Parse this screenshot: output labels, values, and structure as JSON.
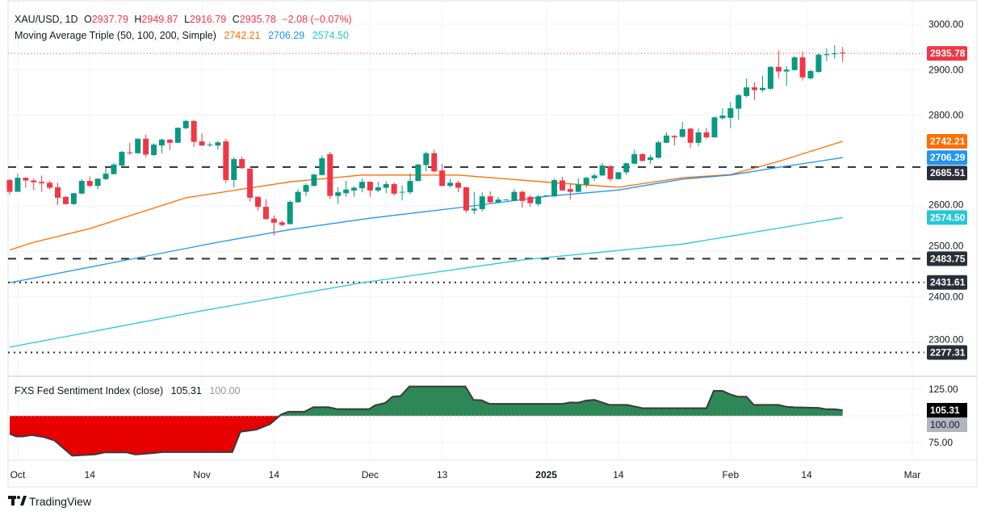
{
  "header": {
    "symbol": "XAU/USD, 1D",
    "open_label": "O",
    "open": "2937.79",
    "high_label": "H",
    "high": "2949.87",
    "low_label": "L",
    "low": "2916.79",
    "close_label": "C",
    "close": "2935.78",
    "change": "−2.08 (−0.07%)",
    "ma_label": "Moving Average Triple (50, 100, 200, Simple)",
    "ma50": "2742.21",
    "ma100": "2706.29",
    "ma200": "2574.50"
  },
  "indicator": {
    "label": "FXS Fed Sentiment Index (close)",
    "value": "105.31",
    "baseline": "100.00"
  },
  "colors": {
    "up": "#089981",
    "down": "#f23645",
    "ma50": "#ff6d00",
    "ma100": "#2196f3",
    "ma200": "#26c6da",
    "level": "#2a2e39",
    "sentiment_up": "#2e8757",
    "sentiment_down": "#e60000"
  },
  "branding": "TradingView",
  "chart_data": [
    {
      "type": "candlestick",
      "symbol": "XAU/USD",
      "interval": "1D",
      "ylim": [
        2230,
        3050
      ],
      "grid": true,
      "y_ticks": [
        "3000.00",
        "2900.00",
        "2800.00",
        "2600.00",
        "2500.00",
        "2400.00",
        "2300.00"
      ],
      "x_ticks": [
        {
          "label": "Oct",
          "bar": 1
        },
        {
          "label": "14",
          "bar": 10
        },
        {
          "label": "Nov",
          "bar": 24
        },
        {
          "label": "14",
          "bar": 33
        },
        {
          "label": "Dec",
          "bar": 45
        },
        {
          "label": "13",
          "bar": 54
        },
        {
          "label": "2025",
          "bar": 67
        },
        {
          "label": "14",
          "bar": 76
        },
        {
          "label": "Feb",
          "bar": 90
        },
        {
          "label": "14",
          "bar": 99.5
        },
        {
          "label": "Mar",
          "bar": 112.7
        }
      ],
      "ohlc": [
        [
          2657,
          2660,
          2625,
          2631
        ],
        [
          2631,
          2671,
          2631,
          2662
        ],
        [
          2662,
          2663,
          2640,
          2656
        ],
        [
          2656,
          2660,
          2635,
          2652
        ],
        [
          2653,
          2667,
          2631,
          2650
        ],
        [
          2651,
          2655,
          2636,
          2640
        ],
        [
          2641,
          2651,
          2602,
          2618
        ],
        [
          2620,
          2621,
          2603,
          2604
        ],
        [
          2604,
          2629,
          2602,
          2628
        ],
        [
          2627,
          2659,
          2626,
          2655
        ],
        [
          2655,
          2665,
          2642,
          2644
        ],
        [
          2644,
          2660,
          2637,
          2660
        ],
        [
          2659,
          2684,
          2657,
          2671
        ],
        [
          2670,
          2695,
          2669,
          2691
        ],
        [
          2689,
          2721,
          2688,
          2719
        ],
        [
          2718,
          2739,
          2712,
          2716
        ],
        [
          2716,
          2748,
          2715,
          2748
        ],
        [
          2748,
          2757,
          2707,
          2713
        ],
        [
          2712,
          2738,
          2710,
          2735
        ],
        [
          2733,
          2748,
          2716,
          2746
        ],
        [
          2746,
          2747,
          2723,
          2739
        ],
        [
          2739,
          2773,
          2738,
          2772
        ],
        [
          2771,
          2789,
          2769,
          2787
        ],
        [
          2787,
          2789,
          2730,
          2741
        ],
        [
          2742,
          2760,
          2732,
          2733
        ],
        [
          2734,
          2741,
          2730,
          2735
        ],
        [
          2733,
          2743,
          2724,
          2740
        ],
        [
          2742,
          2748,
          2650,
          2657
        ],
        [
          2657,
          2707,
          2640,
          2703
        ],
        [
          2703,
          2708,
          2682,
          2683
        ],
        [
          2682,
          2683,
          2610,
          2618
        ],
        [
          2620,
          2621,
          2589,
          2598
        ],
        [
          2598,
          2615,
          2570,
          2571
        ],
        [
          2572,
          2579,
          2535,
          2563
        ],
        [
          2564,
          2568,
          2555,
          2558
        ],
        [
          2560,
          2612,
          2559,
          2609
        ],
        [
          2608,
          2637,
          2607,
          2631
        ],
        [
          2631,
          2650,
          2622,
          2646
        ],
        [
          2644,
          2671,
          2643,
          2669
        ],
        [
          2668,
          2711,
          2667,
          2705
        ],
        [
          2714,
          2719,
          2615,
          2622
        ],
        [
          2622,
          2641,
          2604,
          2630
        ],
        [
          2628,
          2655,
          2620,
          2636
        ],
        [
          2634,
          2643,
          2620,
          2640
        ],
        [
          2639,
          2660,
          2630,
          2653
        ],
        [
          2653,
          2654,
          2620,
          2634
        ],
        [
          2634,
          2653,
          2630,
          2641
        ],
        [
          2640,
          2654,
          2628,
          2648
        ],
        [
          2648,
          2652,
          2622,
          2627
        ],
        [
          2630,
          2645,
          2612,
          2631
        ],
        [
          2630,
          2672,
          2626,
          2655
        ],
        [
          2655,
          2693,
          2654,
          2691
        ],
        [
          2690,
          2720,
          2676,
          2716
        ],
        [
          2716,
          2724,
          2674,
          2676
        ],
        [
          2678,
          2692,
          2643,
          2644
        ],
        [
          2644,
          2660,
          2640,
          2651
        ],
        [
          2651,
          2655,
          2630,
          2640
        ],
        [
          2641,
          2642,
          2585,
          2590
        ],
        [
          2590,
          2631,
          2582,
          2594
        ],
        [
          2593,
          2630,
          2588,
          2621
        ],
        [
          2621,
          2632,
          2606,
          2608
        ],
        [
          2608,
          2620,
          2606,
          2614
        ],
        [
          2613,
          2615,
          2612,
          2614
        ],
        [
          2611,
          2637,
          2610,
          2631
        ],
        [
          2631,
          2634,
          2596,
          2611
        ],
        [
          2620,
          2624,
          2598,
          2606
        ],
        [
          2604,
          2625,
          2600,
          2621
        ],
        [
          2621,
          2624,
          2620,
          2623
        ],
        [
          2621,
          2660,
          2620,
          2657
        ],
        [
          2656,
          2664,
          2633,
          2634
        ],
        [
          2637,
          2649,
          2614,
          2631
        ],
        [
          2631,
          2661,
          2630,
          2647
        ],
        [
          2647,
          2664,
          2640,
          2662
        ],
        [
          2661,
          2671,
          2655,
          2667
        ],
        [
          2667,
          2694,
          2665,
          2689
        ],
        [
          2687,
          2690,
          2654,
          2659
        ],
        [
          2659,
          2675,
          2658,
          2674
        ],
        [
          2674,
          2695,
          2668,
          2694
        ],
        [
          2693,
          2724,
          2691,
          2714
        ],
        [
          2714,
          2716,
          2698,
          2699
        ],
        [
          2701,
          2712,
          2692,
          2707
        ],
        [
          2706,
          2743,
          2704,
          2740
        ],
        [
          2739,
          2762,
          2738,
          2755
        ],
        [
          2754,
          2756,
          2733,
          2751
        ],
        [
          2752,
          2785,
          2750,
          2769
        ],
        [
          2770,
          2772,
          2728,
          2739
        ],
        [
          2739,
          2770,
          2732,
          2762
        ],
        [
          2762,
          2772,
          2748,
          2751
        ],
        [
          2751,
          2797,
          2750,
          2795
        ],
        [
          2793,
          2815,
          2790,
          2799
        ],
        [
          2794,
          2829,
          2771,
          2815
        ],
        [
          2814,
          2846,
          2790,
          2844
        ],
        [
          2842,
          2881,
          2839,
          2861
        ],
        [
          2861,
          2872,
          2833,
          2855
        ],
        [
          2855,
          2887,
          2851,
          2860
        ],
        [
          2858,
          2908,
          2855,
          2906
        ],
        [
          2906,
          2942,
          2881,
          2896
        ],
        [
          2896,
          2908,
          2864,
          2900
        ],
        [
          2899,
          2930,
          2898,
          2927
        ],
        [
          2927,
          2940,
          2876,
          2883
        ],
        [
          2881,
          2900,
          2878,
          2897
        ],
        [
          2895,
          2936,
          2893,
          2933
        ],
        [
          2932,
          2947,
          2919,
          2934
        ],
        [
          2934,
          2954,
          2924,
          2936
        ],
        [
          2937.79,
          2949.87,
          2916.79,
          2935.78
        ]
      ],
      "series": [
        {
          "name": "MA 50",
          "last": 2742.21,
          "points": [
            [
              0,
              2503
            ],
            [
              3,
              2520
            ],
            [
              10,
              2550
            ],
            [
              22,
              2618
            ],
            [
              35,
              2653
            ],
            [
              44,
              2668
            ],
            [
              56,
              2668
            ],
            [
              68,
              2651
            ],
            [
              76,
              2641
            ],
            [
              84,
              2662
            ],
            [
              90,
              2669
            ],
            [
              96,
              2698
            ],
            [
              104,
              2742.21
            ]
          ]
        },
        {
          "name": "MA 100",
          "last": 2706.29,
          "points": [
            [
              0,
              2431
            ],
            [
              26,
              2520
            ],
            [
              35,
              2548
            ],
            [
              45,
              2573
            ],
            [
              57,
              2598
            ],
            [
              67,
              2621
            ],
            [
              76,
              2635
            ],
            [
              84,
              2659
            ],
            [
              90,
              2668
            ],
            [
              96,
              2685
            ],
            [
              104,
              2706.29
            ]
          ]
        },
        {
          "name": "MA 200",
          "last": 2574.5,
          "points": [
            [
              0,
              2289
            ],
            [
              24,
              2369
            ],
            [
              44,
              2431
            ],
            [
              64,
              2481
            ],
            [
              84,
              2516
            ],
            [
              104,
              2574.5
            ]
          ]
        }
      ],
      "last_price": 2935.78,
      "levels": [
        {
          "value": 2685.51,
          "label": "2685.51",
          "style": "dashed"
        },
        {
          "value": 2483.75,
          "label": "2483.75",
          "style": "dashed"
        },
        {
          "value": 2431.61,
          "label": "2431.61",
          "style": "dotted"
        },
        {
          "value": 2277.31,
          "label": "2277.31",
          "style": "dotted"
        }
      ],
      "price_tags": [
        {
          "label": "2935.78",
          "value": 2935.78,
          "color": "#f23645"
        },
        {
          "label": "2742.21",
          "value": 2742.21,
          "color": "#ff6d00"
        },
        {
          "label": "2706.29",
          "value": 2706.29,
          "color": "#2196f3"
        },
        {
          "label": "2685.51",
          "value": 2685.51,
          "color": "#2a2e39"
        },
        {
          "label": "2574.50",
          "value": 2574.5,
          "color": "#26c6da"
        },
        {
          "label": "2483.75",
          "value": 2483.75,
          "color": "#2a2e39"
        },
        {
          "label": "2431.61",
          "value": 2431.61,
          "color": "#2a2e39"
        },
        {
          "label": "2277.31",
          "value": 2277.31,
          "color": "#2a2e39"
        }
      ]
    },
    {
      "type": "area",
      "title": "FXS Fed Sentiment Index (close)",
      "baseline": 100,
      "ylim": [
        60,
        135
      ],
      "y_ticks": [
        "125.00",
        "75.00"
      ],
      "last": 105.31,
      "points": [
        [
          0,
          83.2
        ],
        [
          0.8,
          80.7
        ],
        [
          1.7,
          80.7
        ],
        [
          2.7,
          82
        ],
        [
          4.2,
          80.2
        ],
        [
          5.6,
          76.8
        ],
        [
          7.8,
          62.6
        ],
        [
          10.7,
          63.9
        ],
        [
          11.8,
          65.7
        ],
        [
          14.6,
          65.7
        ],
        [
          15.7,
          63.7
        ],
        [
          18.2,
          65.2
        ],
        [
          19,
          66
        ],
        [
          27.8,
          66
        ],
        [
          28.8,
          85
        ],
        [
          30.8,
          87.1
        ],
        [
          32.5,
          92.3
        ],
        [
          33.9,
          101.3
        ],
        [
          34.8,
          103.9
        ],
        [
          36.8,
          103.9
        ],
        [
          37.9,
          108.2
        ],
        [
          39.8,
          108.2
        ],
        [
          40.9,
          106.4
        ],
        [
          44.9,
          106.4
        ],
        [
          45.6,
          109.8
        ],
        [
          46.9,
          112.1
        ],
        [
          47.8,
          118
        ],
        [
          48.8,
          118.6
        ],
        [
          49.9,
          127.6
        ],
        [
          56.9,
          127.6
        ],
        [
          57.9,
          115
        ],
        [
          58.9,
          114.7
        ],
        [
          59.9,
          111.3
        ],
        [
          69,
          111.3
        ],
        [
          70,
          112.6
        ],
        [
          71,
          112.4
        ],
        [
          72,
          114.4
        ],
        [
          73,
          115
        ],
        [
          74.9,
          110.3
        ],
        [
          77.1,
          110.3
        ],
        [
          79,
          107.2
        ],
        [
          87,
          107.2
        ],
        [
          87.9,
          123.5
        ],
        [
          89,
          123.5
        ],
        [
          90,
          120.1
        ],
        [
          90.9,
          118
        ],
        [
          92,
          118
        ],
        [
          92.9,
          110.3
        ],
        [
          96,
          110.3
        ],
        [
          97,
          108.5
        ],
        [
          98,
          108
        ],
        [
          101,
          107.5
        ],
        [
          102,
          106.2
        ],
        [
          103,
          106.2
        ],
        [
          104,
          105.31
        ]
      ]
    }
  ]
}
